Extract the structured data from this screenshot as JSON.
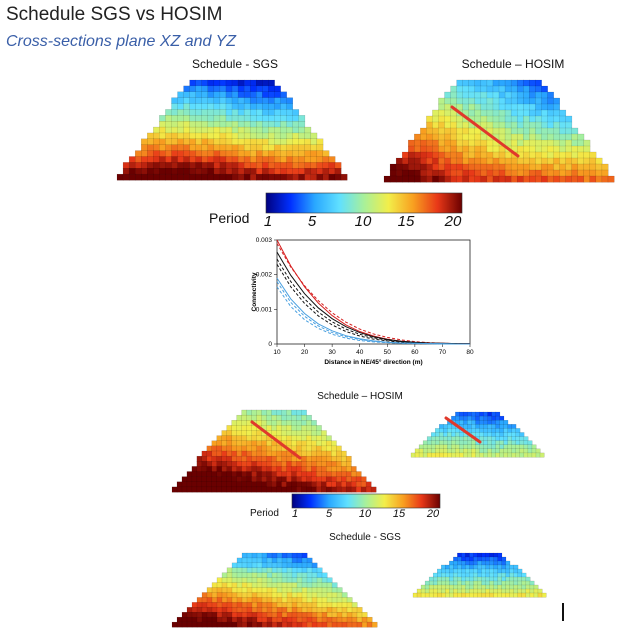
{
  "title": "Schedule SGS vs HOSIM",
  "subtitle": "Cross-sections plane XZ and YZ",
  "top_panels": {
    "left_caption": "Schedule - SGS",
    "right_caption": "Schedule – HOSIM"
  },
  "colorbar_main": {
    "label": "Period",
    "ticks": [
      "1",
      "5",
      "10",
      "15",
      "20"
    ]
  },
  "colorbar_small": {
    "label": "Period",
    "ticks": [
      "1",
      "5",
      "10",
      "15",
      "20"
    ]
  },
  "section_hosim_caption": "Schedule – HOSIM",
  "section_sgs_caption": "Schedule - SGS",
  "colors": {
    "title": "#222222",
    "subtitle": "#3a5fa8",
    "arrow": "#e0392b",
    "palette": [
      "#00007f",
      "#0030ff",
      "#2aa8ff",
      "#60e0ff",
      "#a8f09a",
      "#f2ee4a",
      "#f8a020",
      "#e83818",
      "#6a0000"
    ]
  },
  "chart_data": {
    "type": "line",
    "title": "",
    "xlabel": "Distance in NE/45° direction (m)",
    "ylabel": "Connectivity",
    "xlim": [
      10,
      80
    ],
    "ylim": [
      0,
      0.003
    ],
    "x_ticks": [
      "10",
      "20",
      "30",
      "40",
      "50",
      "60",
      "70",
      "80"
    ],
    "y_ticks": [
      "0",
      "0.001",
      "0.002",
      "0.003"
    ],
    "x": [
      10,
      15,
      20,
      25,
      30,
      35,
      40,
      45,
      50,
      55,
      60,
      65,
      70,
      75,
      80
    ],
    "series": [
      {
        "name": "red solid",
        "color": "#d62020",
        "dash": false,
        "values": [
          0.003,
          0.00225,
          0.00165,
          0.00118,
          0.00082,
          0.00055,
          0.00036,
          0.00023,
          0.00014,
          8e-05,
          5e-05,
          3e-05,
          2e-05,
          1e-05,
          1e-05
        ]
      },
      {
        "name": "red dashed",
        "color": "#d62020",
        "dash": true,
        "values": [
          0.0029,
          0.00222,
          0.00168,
          0.00125,
          0.0009,
          0.00063,
          0.00043,
          0.00029,
          0.00019,
          0.00012,
          7e-05,
          4e-05,
          2e-05,
          1e-05,
          1e-05
        ]
      },
      {
        "name": "black solid",
        "color": "#111111",
        "dash": false,
        "values": [
          0.00265,
          0.00198,
          0.00145,
          0.00104,
          0.00073,
          0.0005,
          0.00033,
          0.00021,
          0.00013,
          8e-05,
          5e-05,
          3e-05,
          2e-05,
          1e-05,
          1e-05
        ]
      },
      {
        "name": "black dashed 1",
        "color": "#111111",
        "dash": true,
        "values": [
          0.00245,
          0.0018,
          0.0013,
          0.00092,
          0.00064,
          0.00043,
          0.00028,
          0.00018,
          0.00011,
          7e-05,
          4e-05,
          2e-05,
          1e-05,
          1e-05,
          0.0
        ]
      },
      {
        "name": "black dashed 2",
        "color": "#111111",
        "dash": true,
        "values": [
          0.0023,
          0.00165,
          0.00117,
          0.00081,
          0.00055,
          0.00036,
          0.00023,
          0.00014,
          9e-05,
          5e-05,
          3e-05,
          2e-05,
          1e-05,
          0.0,
          0.0
        ]
      },
      {
        "name": "blue solid",
        "color": "#4aa0e0",
        "dash": false,
        "values": [
          0.0019,
          0.0013,
          0.00088,
          0.00058,
          0.00038,
          0.00024,
          0.00015,
          9e-05,
          5e-05,
          3e-05,
          2e-05,
          1e-05,
          1e-05,
          0.0,
          0.0
        ]
      },
      {
        "name": "blue dashed 1",
        "color": "#4aa0e0",
        "dash": true,
        "values": [
          0.0018,
          0.0012,
          0.0008,
          0.00052,
          0.00033,
          0.00021,
          0.00013,
          8e-05,
          5e-05,
          3e-05,
          2e-05,
          1e-05,
          0.0,
          0.0,
          0.0
        ]
      },
      {
        "name": "blue dashed 2",
        "color": "#4aa0e0",
        "dash": true,
        "values": [
          0.00165,
          0.00108,
          0.0007,
          0.00045,
          0.00028,
          0.00017,
          0.0001,
          6e-05,
          4e-05,
          2e-05,
          1e-05,
          1e-05,
          0.0,
          0.0,
          0.0
        ]
      }
    ]
  }
}
